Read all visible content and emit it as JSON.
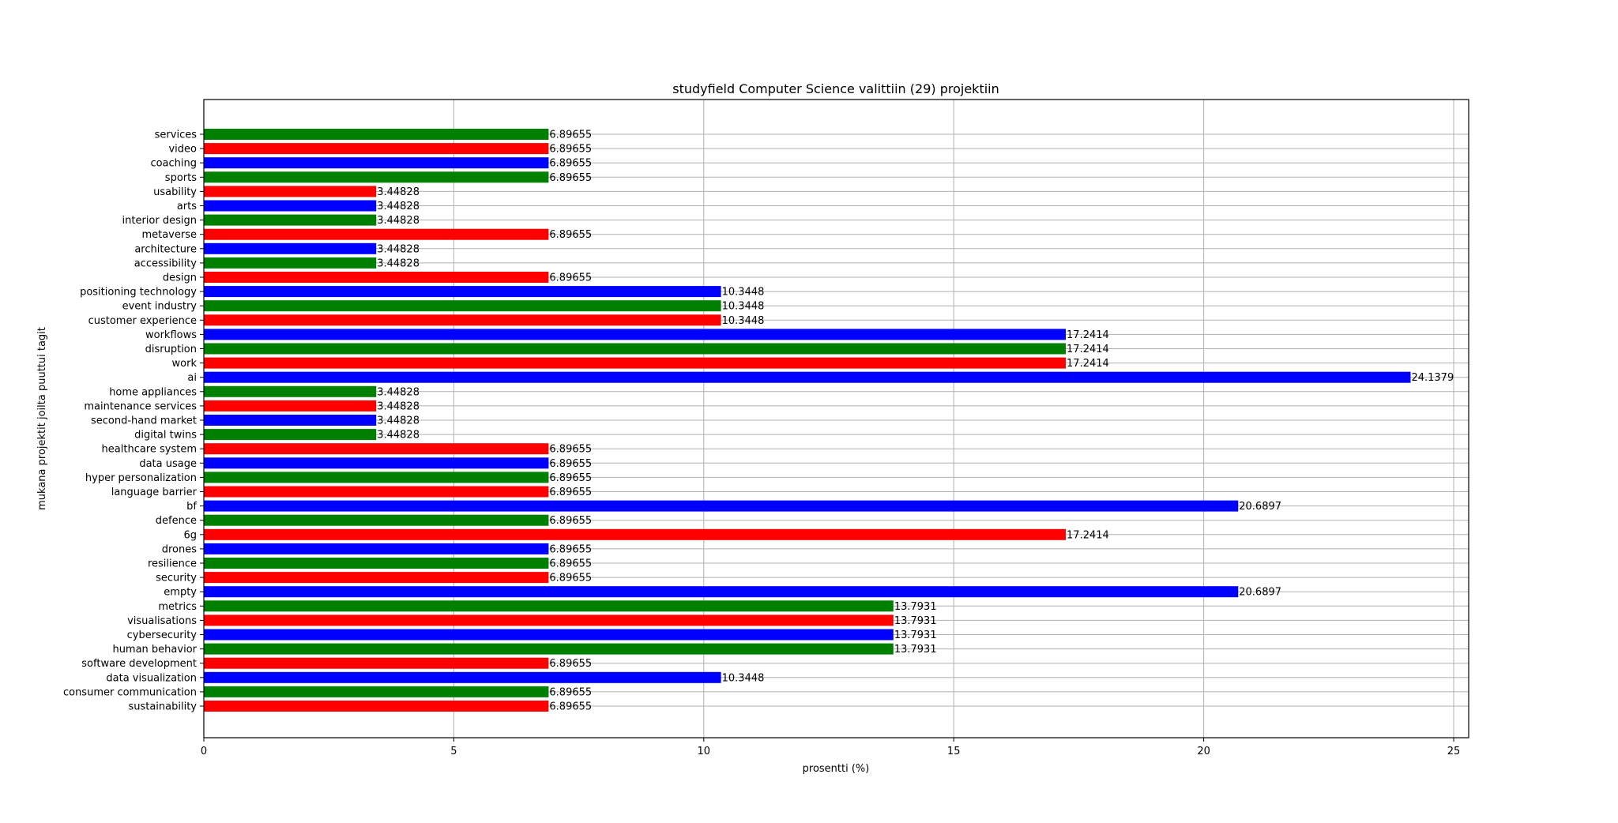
{
  "chart_data": {
    "type": "bar",
    "orientation": "horizontal",
    "title": "studyfield Computer Science valittiin (29) projektiin",
    "xlabel": "prosentti (%)",
    "ylabel": "mukana projektit joilta puuttui tagit",
    "xlim": [
      0,
      25.3
    ],
    "xticks": [
      "0",
      "5",
      "10",
      "15",
      "20",
      "25"
    ],
    "grid": true,
    "legend": "none",
    "colors": {
      "green": "#008000",
      "blue": "#0000ff",
      "red": "#ff0000"
    },
    "bars": [
      {
        "label": "services",
        "value": 6.89655,
        "value_label": "6.89655",
        "color": "#008000"
      },
      {
        "label": "video",
        "value": 6.89655,
        "value_label": "6.89655",
        "color": "#ff0000"
      },
      {
        "label": "coaching",
        "value": 6.89655,
        "value_label": "6.89655",
        "color": "#0000ff"
      },
      {
        "label": "sports",
        "value": 6.89655,
        "value_label": "6.89655",
        "color": "#008000"
      },
      {
        "label": "usability",
        "value": 3.44828,
        "value_label": "3.44828",
        "color": "#ff0000"
      },
      {
        "label": "arts",
        "value": 3.44828,
        "value_label": "3.44828",
        "color": "#0000ff"
      },
      {
        "label": "interior design",
        "value": 3.44828,
        "value_label": "3.44828",
        "color": "#008000"
      },
      {
        "label": "metaverse",
        "value": 6.89655,
        "value_label": "6.89655",
        "color": "#ff0000"
      },
      {
        "label": "architecture",
        "value": 3.44828,
        "value_label": "3.44828",
        "color": "#0000ff"
      },
      {
        "label": "accessibility",
        "value": 3.44828,
        "value_label": "3.44828",
        "color": "#008000"
      },
      {
        "label": "design",
        "value": 6.89655,
        "value_label": "6.89655",
        "color": "#ff0000"
      },
      {
        "label": "positioning technology",
        "value": 10.3448,
        "value_label": "10.3448",
        "color": "#0000ff"
      },
      {
        "label": "event industry",
        "value": 10.3448,
        "value_label": "10.3448",
        "color": "#008000"
      },
      {
        "label": "customer experience",
        "value": 10.3448,
        "value_label": "10.3448",
        "color": "#ff0000"
      },
      {
        "label": "workflows",
        "value": 17.2414,
        "value_label": "17.2414",
        "color": "#0000ff"
      },
      {
        "label": "disruption",
        "value": 17.2414,
        "value_label": "17.2414",
        "color": "#008000"
      },
      {
        "label": "work",
        "value": 17.2414,
        "value_label": "17.2414",
        "color": "#ff0000"
      },
      {
        "label": "ai",
        "value": 24.1379,
        "value_label": "24.1379",
        "color": "#0000ff"
      },
      {
        "label": "home appliances",
        "value": 3.44828,
        "value_label": "3.44828",
        "color": "#008000"
      },
      {
        "label": "maintenance services",
        "value": 3.44828,
        "value_label": "3.44828",
        "color": "#ff0000"
      },
      {
        "label": "second-hand market",
        "value": 3.44828,
        "value_label": "3.44828",
        "color": "#0000ff"
      },
      {
        "label": "digital twins",
        "value": 3.44828,
        "value_label": "3.44828",
        "color": "#008000"
      },
      {
        "label": "healthcare system",
        "value": 6.89655,
        "value_label": "6.89655",
        "color": "#ff0000"
      },
      {
        "label": "data usage",
        "value": 6.89655,
        "value_label": "6.89655",
        "color": "#0000ff"
      },
      {
        "label": "hyper personalization",
        "value": 6.89655,
        "value_label": "6.89655",
        "color": "#008000"
      },
      {
        "label": "language barrier",
        "value": 6.89655,
        "value_label": "6.89655",
        "color": "#ff0000"
      },
      {
        "label": "bf",
        "value": 20.6897,
        "value_label": "20.6897",
        "color": "#0000ff"
      },
      {
        "label": "defence",
        "value": 6.89655,
        "value_label": "6.89655",
        "color": "#008000"
      },
      {
        "label": "6g",
        "value": 17.2414,
        "value_label": "17.2414",
        "color": "#ff0000"
      },
      {
        "label": "drones",
        "value": 6.89655,
        "value_label": "6.89655",
        "color": "#0000ff"
      },
      {
        "label": "resilience",
        "value": 6.89655,
        "value_label": "6.89655",
        "color": "#008000"
      },
      {
        "label": "security",
        "value": 6.89655,
        "value_label": "6.89655",
        "color": "#ff0000"
      },
      {
        "label": "empty",
        "value": 20.6897,
        "value_label": "20.6897",
        "color": "#0000ff"
      },
      {
        "label": "metrics",
        "value": 13.7931,
        "value_label": "13.7931",
        "color": "#008000"
      },
      {
        "label": "visualisations",
        "value": 13.7931,
        "value_label": "13.7931",
        "color": "#ff0000"
      },
      {
        "label": "cybersecurity",
        "value": 13.7931,
        "value_label": "13.7931",
        "color": "#0000ff"
      },
      {
        "label": "human behavior",
        "value": 13.7931,
        "value_label": "13.7931",
        "color": "#008000"
      },
      {
        "label": "software development",
        "value": 6.89655,
        "value_label": "6.89655",
        "color": "#ff0000"
      },
      {
        "label": "data visualization",
        "value": 10.3448,
        "value_label": "10.3448",
        "color": "#0000ff"
      },
      {
        "label": "consumer communication",
        "value": 6.89655,
        "value_label": "6.89655",
        "color": "#008000"
      },
      {
        "label": "sustainability",
        "value": 6.89655,
        "value_label": "6.89655",
        "color": "#ff0000"
      }
    ]
  }
}
